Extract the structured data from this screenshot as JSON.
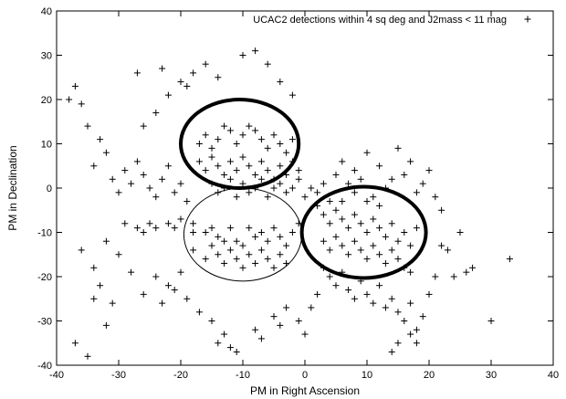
{
  "chart_data": {
    "type": "scatter",
    "title": "",
    "xlabel": "PM in Right Ascension",
    "ylabel": "PM in Declination",
    "xlim": [
      -40,
      40
    ],
    "ylim": [
      -40,
      40
    ],
    "xticks": [
      -40,
      -30,
      -20,
      -10,
      0,
      10,
      20,
      30,
      40
    ],
    "yticks": [
      -40,
      -30,
      -20,
      -10,
      0,
      10,
      20,
      30,
      40
    ],
    "grid": false,
    "legend": {
      "position": "top-right",
      "entries": [
        "UCAC2 detections within 4 sq deg and J2mass < 11 mag"
      ]
    },
    "marker": "+",
    "series": [
      {
        "name": "UCAC2 detections within 4 sq deg and J2mass < 11 mag",
        "points": [
          [
            -31,
            -26
          ],
          [
            -29,
            -8
          ],
          [
            -27,
            -9
          ],
          [
            -26,
            -10
          ],
          [
            -25,
            -8
          ],
          [
            -24,
            -9
          ],
          [
            -22,
            -8
          ],
          [
            -21,
            -9
          ],
          [
            -20,
            -7
          ],
          [
            -18,
            -8
          ],
          [
            -18,
            -10
          ],
          [
            -16,
            -10
          ],
          [
            -15,
            -9
          ],
          [
            -14,
            -11
          ],
          [
            -13,
            -12
          ],
          [
            -12,
            -9
          ],
          [
            -11,
            -12
          ],
          [
            -10,
            -13
          ],
          [
            -9,
            -9
          ],
          [
            -8,
            -11
          ],
          [
            -7,
            -10
          ],
          [
            -6,
            -12
          ],
          [
            -5,
            -9
          ],
          [
            -4,
            -11
          ],
          [
            -3,
            -13
          ],
          [
            -2,
            -10
          ],
          [
            -1,
            -8
          ],
          [
            -18,
            -14
          ],
          [
            -16,
            -16
          ],
          [
            -15,
            -13
          ],
          [
            -14,
            -15
          ],
          [
            -13,
            -17
          ],
          [
            -12,
            -14
          ],
          [
            -11,
            -16
          ],
          [
            -10,
            -18
          ],
          [
            -9,
            -15
          ],
          [
            -8,
            -17
          ],
          [
            -7,
            -14
          ],
          [
            -6,
            -16
          ],
          [
            -5,
            -18
          ],
          [
            -4,
            -15
          ],
          [
            -3,
            -17
          ],
          [
            -24,
            -20
          ],
          [
            -22,
            -22
          ],
          [
            -20,
            -19
          ],
          [
            -19,
            -25
          ],
          [
            -17,
            -28
          ],
          [
            -15,
            -30
          ],
          [
            -14,
            -35
          ],
          [
            -13,
            -33
          ],
          [
            -12,
            -36
          ],
          [
            -11,
            -37
          ],
          [
            -8,
            -32
          ],
          [
            -7,
            -34
          ],
          [
            -5,
            -29
          ],
          [
            -4,
            -31
          ],
          [
            -3,
            -27
          ],
          [
            -36,
            -14
          ],
          [
            -34,
            -18
          ],
          [
            -33,
            -22
          ],
          [
            -32,
            -12
          ],
          [
            -30,
            -15
          ],
          [
            -28,
            -19
          ],
          [
            -26,
            -24
          ],
          [
            -23,
            -26
          ],
          [
            -21,
            -23
          ],
          [
            -37,
            -35
          ],
          [
            -35,
            -38
          ],
          [
            -32,
            -31
          ],
          [
            -34,
            -25
          ],
          [
            -38,
            20
          ],
          [
            -37,
            23
          ],
          [
            -36,
            19
          ],
          [
            -35,
            14
          ],
          [
            -33,
            11
          ],
          [
            -32,
            8
          ],
          [
            -34,
            5
          ],
          [
            -31,
            2
          ],
          [
            -30,
            -1
          ],
          [
            -29,
            4
          ],
          [
            -28,
            1
          ],
          [
            -27,
            6
          ],
          [
            -26,
            3
          ],
          [
            -25,
            0
          ],
          [
            -24,
            -2
          ],
          [
            -23,
            2
          ],
          [
            -22,
            5
          ],
          [
            -21,
            -1
          ],
          [
            -20,
            1
          ],
          [
            -19,
            -3
          ],
          [
            -26,
            14
          ],
          [
            -24,
            17
          ],
          [
            -22,
            21
          ],
          [
            -20,
            24
          ],
          [
            -18,
            26
          ],
          [
            -16,
            28
          ],
          [
            -14,
            25
          ],
          [
            -10,
            30
          ],
          [
            -8,
            31
          ],
          [
            -6,
            28
          ],
          [
            -4,
            24
          ],
          [
            -2,
            21
          ],
          [
            -27,
            26
          ],
          [
            -23,
            27
          ],
          [
            -19,
            23
          ],
          [
            -17,
            10
          ],
          [
            -16,
            12
          ],
          [
            -15,
            9
          ],
          [
            -14,
            11
          ],
          [
            -13,
            14
          ],
          [
            -12,
            13
          ],
          [
            -11,
            10
          ],
          [
            -10,
            12
          ],
          [
            -9,
            14
          ],
          [
            -8,
            13
          ],
          [
            -7,
            11
          ],
          [
            -6,
            9
          ],
          [
            -5,
            12
          ],
          [
            -4,
            10
          ],
          [
            -3,
            8
          ],
          [
            -2,
            11
          ],
          [
            -17,
            6
          ],
          [
            -16,
            4
          ],
          [
            -15,
            7
          ],
          [
            -14,
            5
          ],
          [
            -13,
            3
          ],
          [
            -12,
            6
          ],
          [
            -11,
            4
          ],
          [
            -10,
            7
          ],
          [
            -9,
            5
          ],
          [
            -8,
            3
          ],
          [
            -7,
            6
          ],
          [
            -6,
            4
          ],
          [
            -5,
            2
          ],
          [
            -4,
            5
          ],
          [
            -3,
            3
          ],
          [
            -2,
            6
          ],
          [
            -1,
            4
          ],
          [
            -15,
            1
          ],
          [
            -14,
            -1
          ],
          [
            -13,
            0
          ],
          [
            -12,
            2
          ],
          [
            -11,
            -2
          ],
          [
            -10,
            1
          ],
          [
            -9,
            -1
          ],
          [
            -8,
            0
          ],
          [
            -7,
            2
          ],
          [
            -6,
            -2
          ],
          [
            -5,
            0
          ],
          [
            -4,
            1
          ],
          [
            -3,
            -1
          ],
          [
            -2,
            0
          ],
          [
            -1,
            2
          ],
          [
            0,
            -2
          ],
          [
            1,
            0
          ],
          [
            2,
            -1
          ],
          [
            3,
            1
          ],
          [
            4,
            -3
          ],
          [
            2,
            -4
          ],
          [
            3,
            -6
          ],
          [
            4,
            -8
          ],
          [
            5,
            -5
          ],
          [
            6,
            -7
          ],
          [
            7,
            -9
          ],
          [
            8,
            -6
          ],
          [
            9,
            -8
          ],
          [
            10,
            -10
          ],
          [
            11,
            -7
          ],
          [
            12,
            -9
          ],
          [
            13,
            -11
          ],
          [
            14,
            -8
          ],
          [
            15,
            -12
          ],
          [
            16,
            -10
          ],
          [
            17,
            -13
          ],
          [
            18,
            -9
          ],
          [
            3,
            -12
          ],
          [
            4,
            -14
          ],
          [
            5,
            -11
          ],
          [
            6,
            -13
          ],
          [
            7,
            -15
          ],
          [
            8,
            -12
          ],
          [
            9,
            -14
          ],
          [
            10,
            -16
          ],
          [
            11,
            -13
          ],
          [
            12,
            -15
          ],
          [
            13,
            -17
          ],
          [
            14,
            -14
          ],
          [
            15,
            -16
          ],
          [
            16,
            -18
          ],
          [
            17,
            -19
          ],
          [
            3,
            -18
          ],
          [
            4,
            -20
          ],
          [
            5,
            -22
          ],
          [
            6,
            -19
          ],
          [
            7,
            -23
          ],
          [
            8,
            -25
          ],
          [
            9,
            -21
          ],
          [
            10,
            -24
          ],
          [
            11,
            -26
          ],
          [
            12,
            -22
          ],
          [
            13,
            -27
          ],
          [
            14,
            -25
          ],
          [
            15,
            -28
          ],
          [
            16,
            -30
          ],
          [
            17,
            -26
          ],
          [
            18,
            -32
          ],
          [
            19,
            -29
          ],
          [
            15,
            -35
          ],
          [
            14,
            -37
          ],
          [
            17,
            -33
          ],
          [
            18,
            -35
          ],
          [
            2,
            -24
          ],
          [
            1,
            -27
          ],
          [
            -1,
            -30
          ],
          [
            0,
            -33
          ],
          [
            8,
            4
          ],
          [
            10,
            8
          ],
          [
            12,
            5
          ],
          [
            14,
            2
          ],
          [
            15,
            9
          ],
          [
            17,
            6
          ],
          [
            18,
            -1
          ],
          [
            19,
            1
          ],
          [
            20,
            4
          ],
          [
            21,
            -2
          ],
          [
            22,
            -5
          ],
          [
            22,
            -13
          ],
          [
            23,
            -14
          ],
          [
            21,
            -20
          ],
          [
            20,
            -24
          ],
          [
            24,
            -20
          ],
          [
            25,
            -10
          ],
          [
            26,
            -19
          ],
          [
            27,
            -18
          ],
          [
            30,
            -30
          ],
          [
            33,
            -16
          ],
          [
            5,
            3
          ],
          [
            6,
            6
          ],
          [
            7,
            1
          ],
          [
            9,
            2
          ],
          [
            11,
            -2
          ],
          [
            13,
            0
          ],
          [
            16,
            3
          ],
          [
            6,
            -3
          ],
          [
            8,
            -1
          ],
          [
            10,
            -3
          ],
          [
            12,
            -4
          ]
        ]
      }
    ],
    "ellipses": [
      {
        "label": "top circle",
        "cx": -10.5,
        "cy": 10,
        "rx": 9.5,
        "ry": 10,
        "weight": "thick"
      },
      {
        "label": "right circle",
        "cx": 9.5,
        "cy": -10,
        "rx": 10,
        "ry": 10.3,
        "weight": "thick"
      },
      {
        "label": "middle circle",
        "cx": -10,
        "cy": -10.5,
        "rx": 9.5,
        "ry": 10.5,
        "weight": "thin"
      }
    ]
  }
}
